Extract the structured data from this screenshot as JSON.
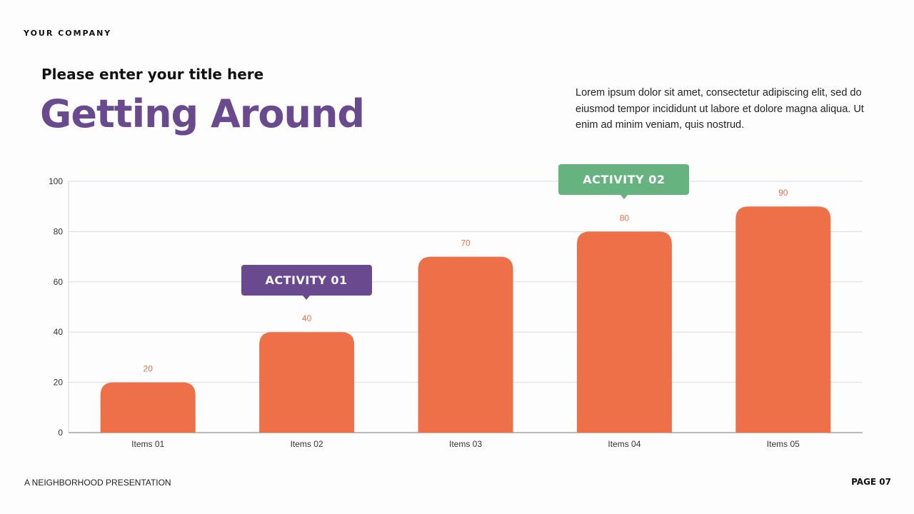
{
  "header": {
    "company": "YOUR COMPANY",
    "subtitle": "Please enter your title here",
    "title": "Getting Around",
    "description": "Lorem ipsum dolor sit amet, consectetur adipiscing elit, sed do eiusmod tempor incididunt ut labore et dolore magna aliqua. Ut enim ad minim veniam, quis nostrud."
  },
  "footer": {
    "left": "A NEIGHBORHOOD PRESENTATION",
    "right": "PAGE 07"
  },
  "callouts": [
    {
      "label": "ACTIVITY 01",
      "category": "Items 02",
      "color": "#694a8f"
    },
    {
      "label": "ACTIVITY 02",
      "category": "Items 04",
      "color": "#66b37f"
    }
  ],
  "chart_data": {
    "type": "bar",
    "categories": [
      "Items 01",
      "Items 02",
      "Items 03",
      "Items 04",
      "Items 05"
    ],
    "values": [
      20,
      40,
      70,
      80,
      90
    ],
    "ylim": [
      0,
      100
    ],
    "yticks": [
      0,
      20,
      40,
      60,
      80,
      100
    ],
    "grid": true,
    "bar_color": "#ee7049",
    "label_color": "#ee7049"
  }
}
